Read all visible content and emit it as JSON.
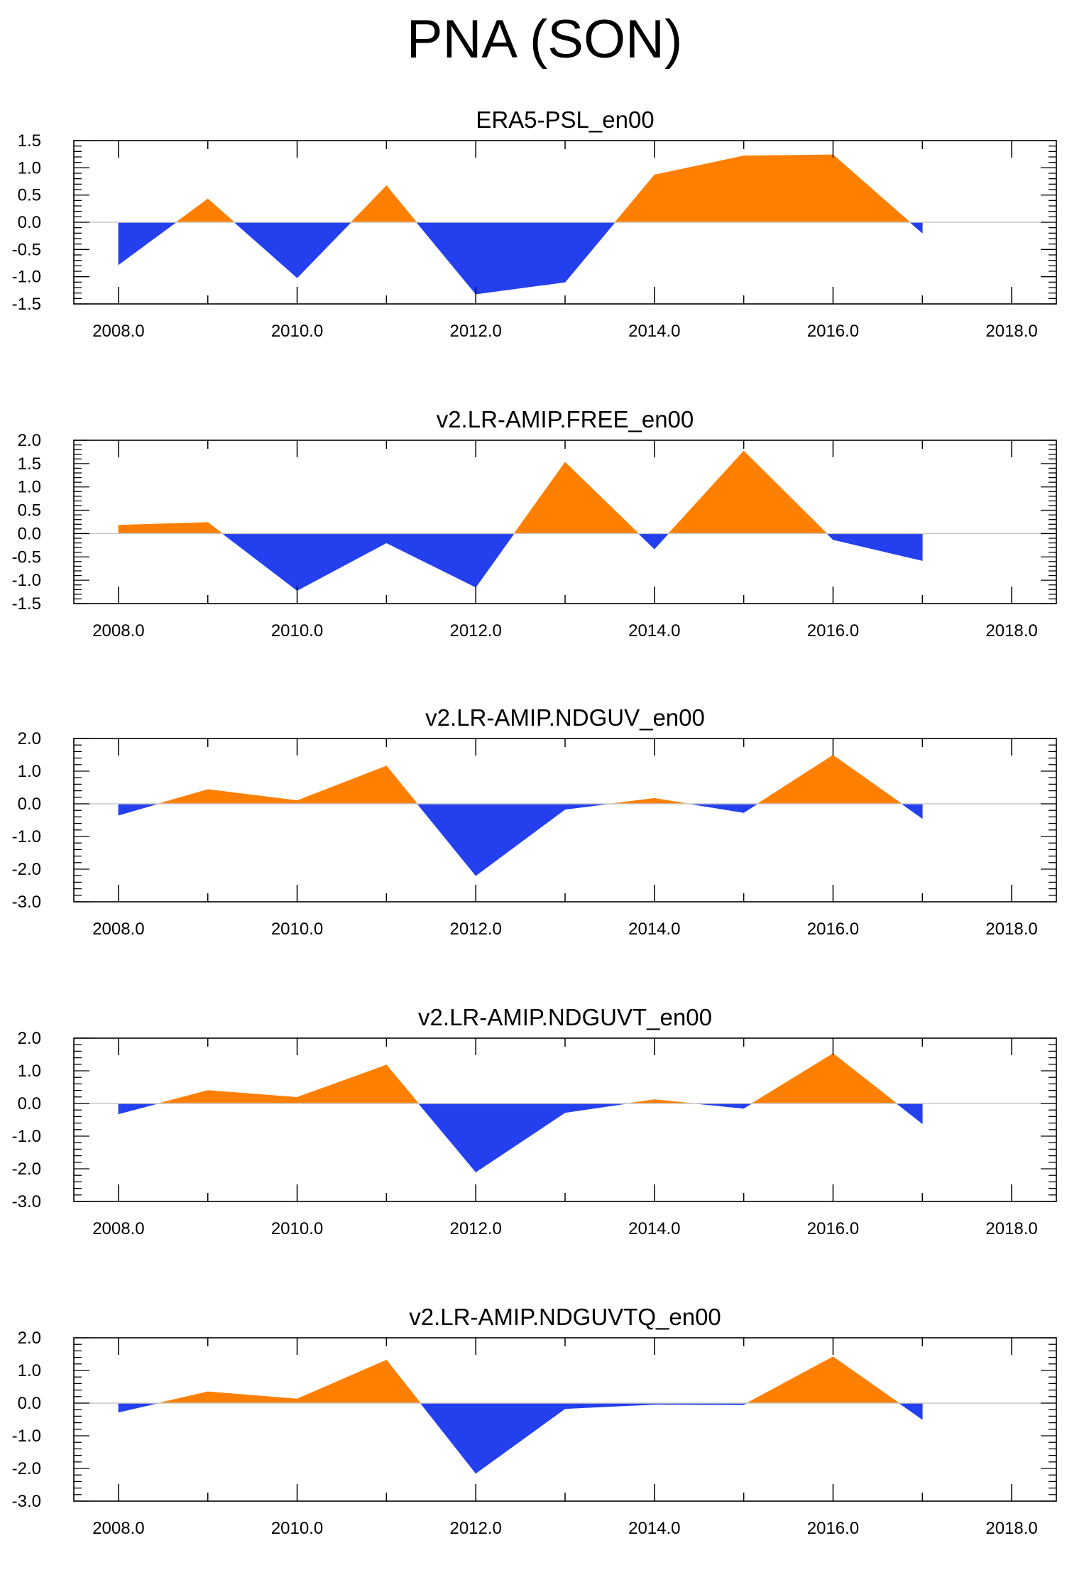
{
  "title": "PNA (SON)",
  "colors": {
    "positive": "#ff8000",
    "negative": "#2440ee",
    "zero_line": "#c8c8c8",
    "axis": "#000000"
  },
  "chart_data": [
    {
      "type": "area",
      "title": "ERA5-PSL_en00",
      "x": [
        2008,
        2009,
        2010,
        2011,
        2012,
        2013,
        2014,
        2015,
        2016,
        2017
      ],
      "values": [
        -0.78,
        0.43,
        -1.02,
        0.67,
        -1.32,
        -1.1,
        0.87,
        1.22,
        1.24,
        -0.2
      ],
      "xlim": [
        2007.5,
        2018.5
      ],
      "ylim": [
        -1.5,
        1.5
      ],
      "xticks": [
        "2008.0",
        "2010.0",
        "2012.0",
        "2014.0",
        "2016.0",
        "2018.0"
      ],
      "yticks": [
        "1.5",
        "1.0",
        "0.5",
        "0.0",
        "-0.5",
        "-1.0",
        "-1.5"
      ],
      "xlabel": "",
      "ylabel": ""
    },
    {
      "type": "area",
      "title": "v2.LR-AMIP.FREE_en00",
      "x": [
        2008,
        2009,
        2010,
        2011,
        2012,
        2013,
        2014,
        2015,
        2016,
        2017
      ],
      "values": [
        0.18,
        0.24,
        -1.22,
        -0.2,
        -1.15,
        1.53,
        -0.33,
        1.77,
        -0.13,
        -0.58
      ],
      "xlim": [
        2007.5,
        2018.5
      ],
      "ylim": [
        -1.5,
        2.0
      ],
      "xticks": [
        "2008.0",
        "2010.0",
        "2012.0",
        "2014.0",
        "2016.0",
        "2018.0"
      ],
      "yticks": [
        "2.0",
        "1.5",
        "1.0",
        "0.5",
        "0.0",
        "-0.5",
        "-1.0",
        "-1.5"
      ],
      "xlabel": "",
      "ylabel": ""
    },
    {
      "type": "area",
      "title": "v2.LR-AMIP.NDGUV_en00",
      "x": [
        2008,
        2009,
        2010,
        2011,
        2012,
        2013,
        2014,
        2015,
        2016,
        2017
      ],
      "values": [
        -0.35,
        0.44,
        0.1,
        1.16,
        -2.2,
        -0.17,
        0.17,
        -0.27,
        1.49,
        -0.45
      ],
      "xlim": [
        2007.5,
        2018.5
      ],
      "ylim": [
        -3.0,
        2.0
      ],
      "xticks": [
        "2008.0",
        "2010.0",
        "2012.0",
        "2014.0",
        "2016.0",
        "2018.0"
      ],
      "yticks": [
        "2.0",
        "1.0",
        "0.0",
        "-1.0",
        "-2.0",
        "-3.0"
      ],
      "xlabel": "",
      "ylabel": ""
    },
    {
      "type": "area",
      "title": "v2.LR-AMIP.NDGUVT_en00",
      "x": [
        2008,
        2009,
        2010,
        2011,
        2012,
        2013,
        2014,
        2015,
        2016,
        2017
      ],
      "values": [
        -0.32,
        0.4,
        0.19,
        1.18,
        -2.1,
        -0.28,
        0.12,
        -0.15,
        1.53,
        -0.62
      ],
      "xlim": [
        2007.5,
        2018.5
      ],
      "ylim": [
        -3.0,
        2.0
      ],
      "xticks": [
        "2008.0",
        "2010.0",
        "2012.0",
        "2014.0",
        "2016.0",
        "2018.0"
      ],
      "yticks": [
        "2.0",
        "1.0",
        "0.0",
        "-1.0",
        "-2.0",
        "-3.0"
      ],
      "xlabel": "",
      "ylabel": ""
    },
    {
      "type": "area",
      "title": "v2.LR-AMIP.NDGUVTQ_en00",
      "x": [
        2008,
        2009,
        2010,
        2011,
        2012,
        2013,
        2014,
        2015,
        2016,
        2017
      ],
      "values": [
        -0.28,
        0.35,
        0.13,
        1.32,
        -2.15,
        -0.17,
        -0.04,
        -0.05,
        1.42,
        -0.5
      ],
      "xlim": [
        2007.5,
        2018.5
      ],
      "ylim": [
        -3.0,
        2.0
      ],
      "xticks": [
        "2008.0",
        "2010.0",
        "2012.0",
        "2014.0",
        "2016.0",
        "2018.0"
      ],
      "yticks": [
        "2.0",
        "1.0",
        "0.0",
        "-1.0",
        "-2.0",
        "-3.0"
      ],
      "xlabel": "",
      "ylabel": ""
    }
  ]
}
